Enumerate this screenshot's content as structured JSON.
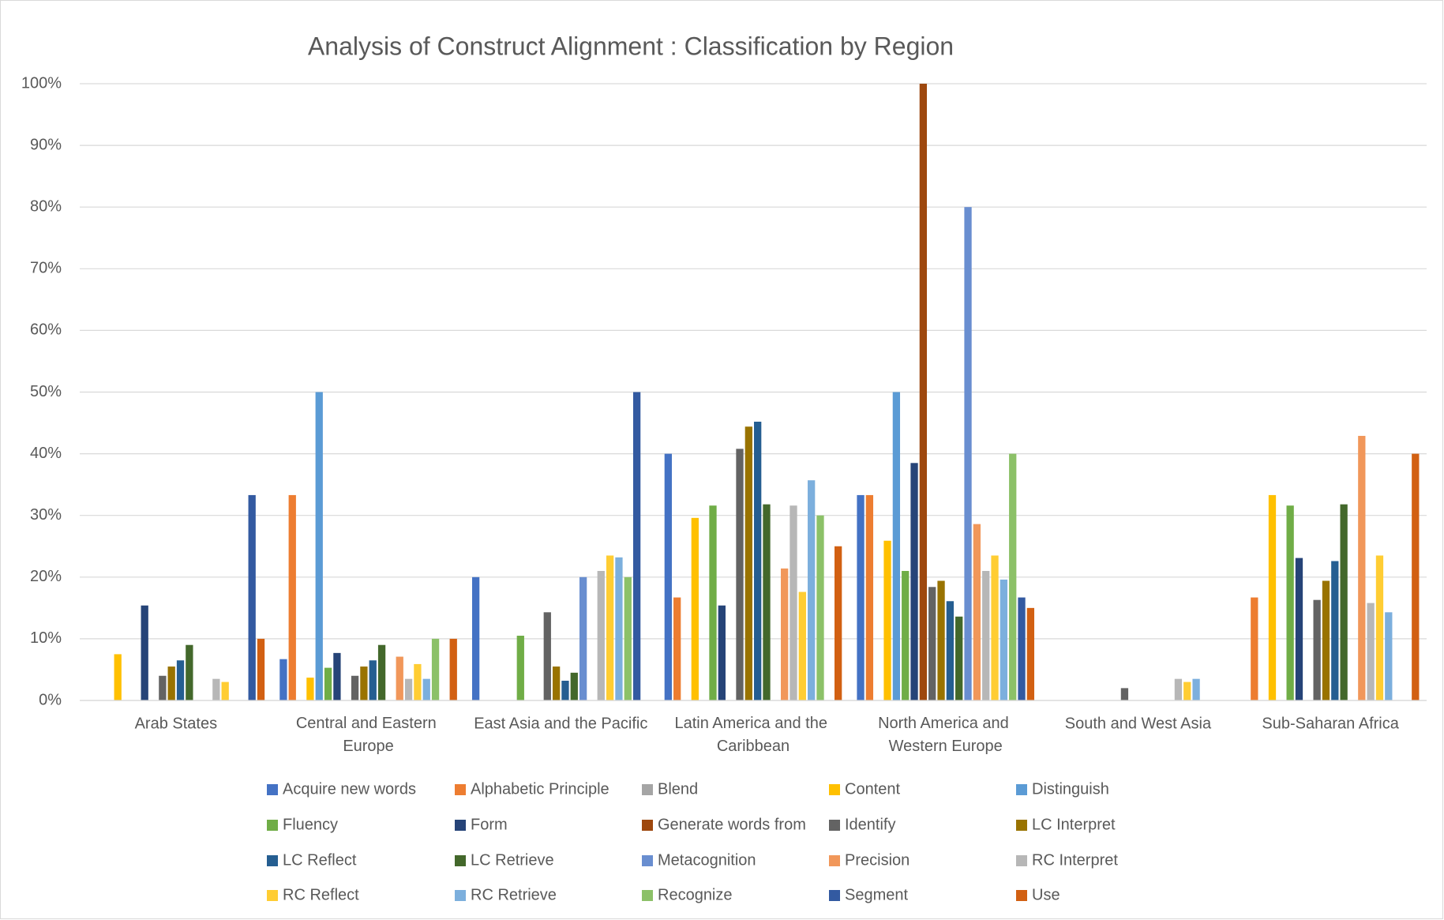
{
  "chart_data": {
    "type": "bar",
    "title": "Analysis of Construct Alignment : Classification by Region",
    "categories": [
      "Arab States",
      "Central and Eastern Europe",
      "East Asia and the Pacific",
      "Latin America and the Caribbean",
      "North America and Western Europe",
      "South and West Asia",
      "Sub-Saharan Africa"
    ],
    "ylim": [
      0,
      100
    ],
    "yticks": [
      {
        "value": 0,
        "label": "0%"
      },
      {
        "value": 10,
        "label": "10%"
      },
      {
        "value": 20,
        "label": "20%"
      },
      {
        "value": 30,
        "label": "30%"
      },
      {
        "value": 40,
        "label": "40%"
      },
      {
        "value": 50,
        "label": "50%"
      },
      {
        "value": 60,
        "label": "60%"
      },
      {
        "value": 70,
        "label": "70%"
      },
      {
        "value": 80,
        "label": "80%"
      },
      {
        "value": 90,
        "label": "90%"
      },
      {
        "value": 100,
        "label": "100%"
      }
    ],
    "grid": true,
    "legend": "bottom",
    "series": [
      {
        "name": "Acquire new words",
        "color": "#4472c4",
        "values": [
          null,
          6.7,
          20,
          40,
          33.3,
          null,
          null
        ]
      },
      {
        "name": "Alphabetic Principle",
        "color": "#ed7d31",
        "values": [
          null,
          33.3,
          null,
          16.7,
          33.3,
          null,
          16.7
        ]
      },
      {
        "name": "Blend",
        "color": "#a5a5a5",
        "values": [
          null,
          null,
          null,
          null,
          null,
          null,
          null
        ]
      },
      {
        "name": "Content",
        "color": "#ffc000",
        "values": [
          7.5,
          3.7,
          null,
          29.6,
          25.9,
          null,
          33.3
        ]
      },
      {
        "name": "Distinguish",
        "color": "#5b9bd5",
        "values": [
          null,
          50,
          null,
          null,
          50,
          null,
          null
        ]
      },
      {
        "name": "Fluency",
        "color": "#70ad47",
        "values": [
          null,
          5.3,
          10.5,
          31.6,
          21,
          null,
          31.6
        ]
      },
      {
        "name": "Form",
        "color": "#264478",
        "values": [
          15.4,
          7.7,
          null,
          15.4,
          38.5,
          null,
          23.1
        ]
      },
      {
        "name": "Generate words from",
        "color": "#9e480e",
        "values": [
          null,
          null,
          null,
          null,
          100,
          null,
          null
        ]
      },
      {
        "name": "Identify",
        "color": "#636363",
        "values": [
          4,
          4,
          14.3,
          40.8,
          18.4,
          2,
          16.3
        ]
      },
      {
        "name": "LC Interpret",
        "color": "#997300",
        "values": [
          5.5,
          5.5,
          5.5,
          44.4,
          19.4,
          null,
          19.4
        ]
      },
      {
        "name": "LC Reflect",
        "color": "#255e91",
        "values": [
          6.5,
          6.5,
          3.2,
          45.2,
          16.1,
          null,
          22.6
        ]
      },
      {
        "name": "LC Retrieve",
        "color": "#43682b",
        "values": [
          9,
          9,
          4.5,
          31.8,
          13.6,
          null,
          31.8
        ]
      },
      {
        "name": "Metacognition",
        "color": "#698ed0",
        "values": [
          null,
          null,
          20,
          null,
          80,
          null,
          null
        ]
      },
      {
        "name": "Precision",
        "color": "#f1975a",
        "values": [
          null,
          7.1,
          null,
          21.4,
          28.6,
          null,
          42.9
        ]
      },
      {
        "name": "RC Interpret",
        "color": "#b7b7b7",
        "values": [
          3.5,
          3.5,
          21,
          31.6,
          21,
          3.5,
          15.8
        ]
      },
      {
        "name": "RC Reflect",
        "color": "#ffcd33",
        "values": [
          3,
          5.9,
          23.5,
          17.6,
          23.5,
          3,
          23.5
        ]
      },
      {
        "name": "RC Retrieve",
        "color": "#7cafdd",
        "values": [
          null,
          3.5,
          23.2,
          35.7,
          19.6,
          3.5,
          14.3
        ]
      },
      {
        "name": "Recognize",
        "color": "#8cc168",
        "values": [
          null,
          10,
          20,
          30,
          40,
          null,
          null
        ]
      },
      {
        "name": "Segment",
        "color": "#335aa1",
        "values": [
          33.3,
          null,
          50,
          null,
          16.7,
          null,
          null
        ]
      },
      {
        "name": "Use",
        "color": "#d26012",
        "values": [
          10,
          10,
          null,
          25,
          15,
          null,
          40
        ]
      }
    ]
  }
}
